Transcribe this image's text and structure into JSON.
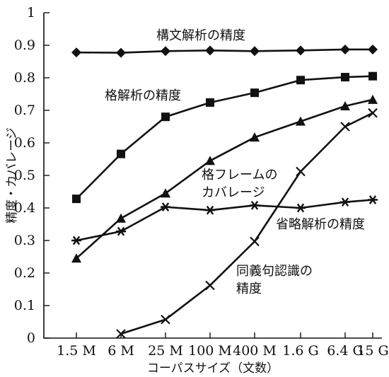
{
  "chart_data": {
    "type": "line",
    "title": "",
    "xlabel": "コーパスサイズ（文数）",
    "ylabel": "精度・カバレージ",
    "categories": [
      "1.5 M",
      "6 M",
      "25 M",
      "100 M",
      "400 M",
      "1.6 G",
      "6.4 G",
      "15 G"
    ],
    "ylim": [
      0,
      1
    ],
    "yticks": [
      "0",
      "0.1",
      "0.2",
      "0.3",
      "0.4",
      "0.5",
      "0.6",
      "0.7",
      "0.8",
      "0.9",
      "1"
    ],
    "grid": false,
    "legend": "none",
    "series": [
      {
        "name": "構文解析の精度",
        "marker": "diamond",
        "values": [
          0.878,
          0.877,
          0.882,
          0.884,
          0.882,
          0.884,
          0.887,
          0.887
        ]
      },
      {
        "name": "格解析の精度",
        "marker": "square",
        "values": [
          0.428,
          0.566,
          0.68,
          0.724,
          0.754,
          0.793,
          0.802,
          0.805
        ]
      },
      {
        "name": "格フレームのカバレージ",
        "label_lines": [
          "格フレームの",
          "カバレージ"
        ],
        "marker": "triangle",
        "values": [
          0.245,
          0.368,
          0.445,
          0.545,
          0.617,
          0.666,
          0.713,
          0.733
        ]
      },
      {
        "name": "省略解析の精度",
        "marker": "asterisk",
        "values": [
          0.3,
          0.328,
          0.403,
          0.393,
          0.408,
          0.4,
          0.418,
          0.425
        ]
      },
      {
        "name": "同義句認識の精度",
        "label_lines": [
          "同義句認識の",
          "精度"
        ],
        "marker": "x",
        "values": [
          null,
          0.013,
          0.057,
          0.162,
          0.297,
          0.512,
          0.65,
          0.692
        ]
      }
    ]
  }
}
